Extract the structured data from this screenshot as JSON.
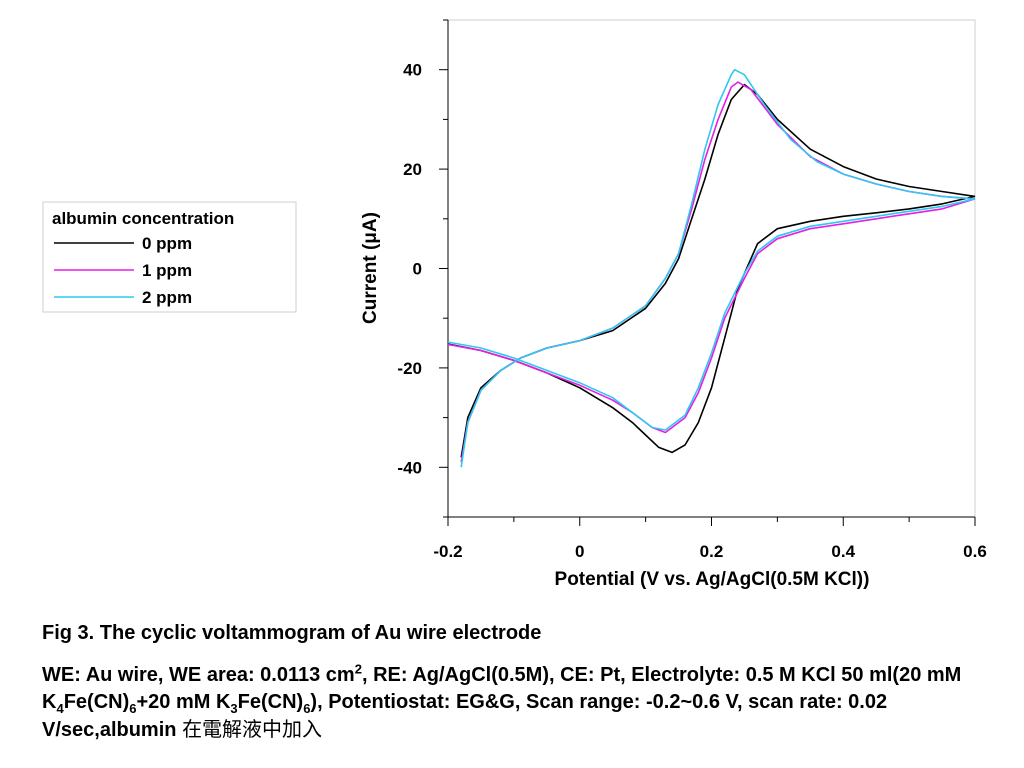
{
  "chart_data": {
    "type": "line",
    "title": "",
    "xlabel": "Potential (V vs. Ag/AgCl(0.5M KCl))",
    "ylabel": "Current (μA)",
    "xlim": [
      -0.2,
      0.6
    ],
    "ylim": [
      -50,
      50
    ],
    "xticks": [
      -0.2,
      0,
      0.2,
      0.4,
      0.6
    ],
    "xtick_labels": [
      "-0.2",
      "0",
      "0.2",
      "0.4",
      "0.6"
    ],
    "yticks": [
      40,
      20,
      0,
      -20,
      -40
    ],
    "ytick_labels": [
      "40",
      "20",
      "0",
      "-20",
      "-40"
    ],
    "grid": false,
    "legend": {
      "title": "albumin concentration",
      "placement": "left, outside plot"
    },
    "series": [
      {
        "name": "0 ppm",
        "color": "#000000",
        "forward": [
          [
            -0.18,
            -38
          ],
          [
            -0.17,
            -30
          ],
          [
            -0.15,
            -24
          ],
          [
            -0.12,
            -20.5
          ],
          [
            -0.09,
            -18
          ],
          [
            -0.05,
            -16
          ],
          [
            0,
            -14.5
          ],
          [
            0.05,
            -12.5
          ],
          [
            0.1,
            -8
          ],
          [
            0.13,
            -3
          ],
          [
            0.15,
            2
          ],
          [
            0.17,
            10
          ],
          [
            0.19,
            18
          ],
          [
            0.21,
            27
          ],
          [
            0.23,
            34
          ],
          [
            0.25,
            37
          ],
          [
            0.27,
            35
          ],
          [
            0.3,
            30
          ],
          [
            0.35,
            24
          ],
          [
            0.4,
            20.5
          ],
          [
            0.45,
            18
          ],
          [
            0.5,
            16.5
          ],
          [
            0.55,
            15.5
          ],
          [
            0.6,
            14.5
          ]
        ],
        "reverse": [
          [
            0.6,
            14.5
          ],
          [
            0.55,
            13
          ],
          [
            0.5,
            12
          ],
          [
            0.45,
            11.2
          ],
          [
            0.4,
            10.5
          ],
          [
            0.35,
            9.5
          ],
          [
            0.3,
            8
          ],
          [
            0.27,
            5
          ],
          [
            0.24,
            -4
          ],
          [
            0.22,
            -14
          ],
          [
            0.2,
            -24
          ],
          [
            0.18,
            -31
          ],
          [
            0.16,
            -35.5
          ],
          [
            0.14,
            -37
          ],
          [
            0.12,
            -36
          ],
          [
            0.1,
            -33.5
          ],
          [
            0.08,
            -31
          ],
          [
            0.05,
            -28
          ],
          [
            0,
            -24
          ],
          [
            -0.05,
            -21
          ],
          [
            -0.1,
            -18.5
          ],
          [
            -0.15,
            -16.5
          ],
          [
            -0.2,
            -15.2
          ]
        ]
      },
      {
        "name": "1 ppm",
        "color": "#e61ee6",
        "forward": [
          [
            -0.18,
            -39
          ],
          [
            -0.17,
            -31
          ],
          [
            -0.15,
            -24.5
          ],
          [
            -0.12,
            -20.5
          ],
          [
            -0.09,
            -18
          ],
          [
            -0.05,
            -16
          ],
          [
            0,
            -14.5
          ],
          [
            0.05,
            -12
          ],
          [
            0.1,
            -7.5
          ],
          [
            0.13,
            -2
          ],
          [
            0.15,
            3
          ],
          [
            0.17,
            12
          ],
          [
            0.19,
            22
          ],
          [
            0.21,
            30
          ],
          [
            0.23,
            36.5
          ],
          [
            0.24,
            37.5
          ],
          [
            0.26,
            36
          ],
          [
            0.3,
            29
          ],
          [
            0.35,
            22.5
          ],
          [
            0.4,
            19
          ],
          [
            0.45,
            17
          ],
          [
            0.5,
            15.5
          ],
          [
            0.55,
            14.5
          ],
          [
            0.6,
            14
          ]
        ],
        "reverse": [
          [
            0.6,
            14
          ],
          [
            0.55,
            12
          ],
          [
            0.5,
            11
          ],
          [
            0.45,
            10
          ],
          [
            0.4,
            9
          ],
          [
            0.35,
            8
          ],
          [
            0.3,
            6
          ],
          [
            0.27,
            3
          ],
          [
            0.25,
            -2
          ],
          [
            0.22,
            -10
          ],
          [
            0.2,
            -18
          ],
          [
            0.18,
            -25
          ],
          [
            0.16,
            -30
          ],
          [
            0.13,
            -33
          ],
          [
            0.11,
            -32
          ],
          [
            0.08,
            -29
          ],
          [
            0.05,
            -26.5
          ],
          [
            0,
            -23.5
          ],
          [
            -0.05,
            -21
          ],
          [
            -0.1,
            -18.5
          ],
          [
            -0.15,
            -16.5
          ],
          [
            -0.2,
            -15.3
          ]
        ]
      },
      {
        "name": "2 ppm",
        "color": "#2ec8f0",
        "forward": [
          [
            -0.18,
            -40
          ],
          [
            -0.17,
            -31
          ],
          [
            -0.15,
            -24.5
          ],
          [
            -0.12,
            -20.5
          ],
          [
            -0.09,
            -18
          ],
          [
            -0.05,
            -16
          ],
          [
            0,
            -14.5
          ],
          [
            0.05,
            -12
          ],
          [
            0.1,
            -7.5
          ],
          [
            0.13,
            -2
          ],
          [
            0.15,
            3
          ],
          [
            0.17,
            13
          ],
          [
            0.19,
            24
          ],
          [
            0.21,
            33
          ],
          [
            0.23,
            39
          ],
          [
            0.235,
            40
          ],
          [
            0.25,
            39
          ],
          [
            0.28,
            33
          ],
          [
            0.32,
            26
          ],
          [
            0.36,
            21.5
          ],
          [
            0.4,
            19
          ],
          [
            0.45,
            17
          ],
          [
            0.5,
            15.5
          ],
          [
            0.55,
            14.5
          ],
          [
            0.6,
            14
          ]
        ],
        "reverse": [
          [
            0.6,
            14
          ],
          [
            0.55,
            12.5
          ],
          [
            0.5,
            11.5
          ],
          [
            0.45,
            10.5
          ],
          [
            0.4,
            9.5
          ],
          [
            0.35,
            8.5
          ],
          [
            0.3,
            6.5
          ],
          [
            0.27,
            3.5
          ],
          [
            0.25,
            -1
          ],
          [
            0.22,
            -9
          ],
          [
            0.2,
            -17
          ],
          [
            0.18,
            -24
          ],
          [
            0.16,
            -29.5
          ],
          [
            0.13,
            -32.5
          ],
          [
            0.11,
            -32
          ],
          [
            0.08,
            -29
          ],
          [
            0.05,
            -26
          ],
          [
            0,
            -23
          ],
          [
            -0.05,
            -20.5
          ],
          [
            -0.1,
            -18
          ],
          [
            -0.15,
            -16
          ],
          [
            -0.2,
            -14.8
          ]
        ]
      }
    ]
  },
  "caption": {
    "title": "Fig  3. The cyclic voltammogram of Au wire electrode",
    "body_1": "WE: Au wire, WE area: 0.0113 cm",
    "body_1_sup": "2",
    "body_2": ", RE: Ag/AgCl(0.5M), CE: Pt, Electrolyte: 0.5 M KCl 50 ml(20 mM K",
    "body_2_sub": "4",
    "body_3": "Fe(CN)",
    "body_3_sub": "6",
    "body_4": "+20 mM K",
    "body_4_sub": "3",
    "body_5": "Fe(CN)",
    "body_5_sub": "6",
    "body_6": "), Potentiostat: EG&G, Scan range: -0.2~0.6 V, scan rate: 0.02 V/sec,albumin ",
    "body_cjk": "在電解液中加入"
  }
}
